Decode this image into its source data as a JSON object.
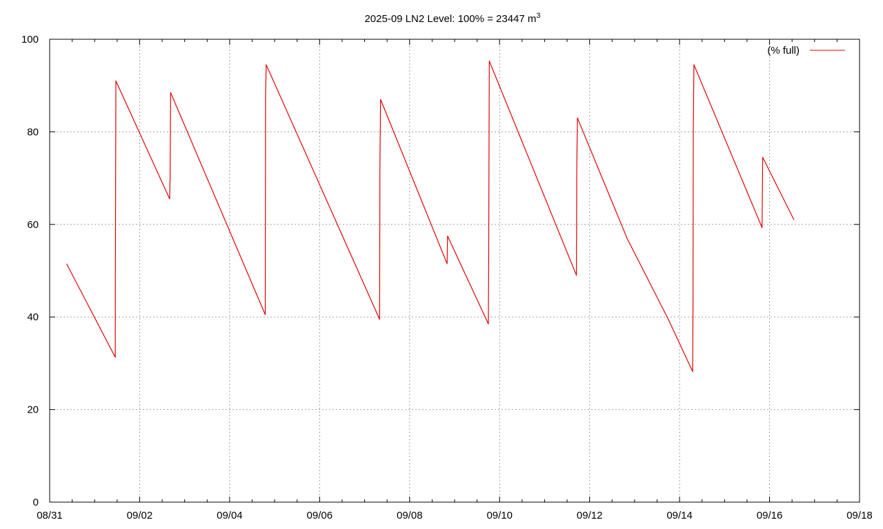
{
  "chart_data": {
    "type": "line",
    "title_main": "2025-09 LN2 Level: 100% = 23447 m",
    "title_sup": "3",
    "xlabel": "",
    "ylabel": "",
    "x_range": [
      "2025-08-31",
      "2025-09-18"
    ],
    "ylim": [
      0,
      100
    ],
    "x_tick_labels": [
      "08/31",
      "09/02",
      "09/04",
      "09/06",
      "09/08",
      "09/10",
      "09/12",
      "09/14",
      "09/16",
      "09/18"
    ],
    "y_tick_labels": [
      "0",
      "20",
      "40",
      "60",
      "80",
      "100"
    ],
    "grid": true,
    "legend_position": "top-right",
    "series": [
      {
        "name": "(% full)",
        "color": "#e00000",
        "points": [
          [
            "2025-08-31T09:00",
            51.5
          ],
          [
            "2025-09-01T11:00",
            31.3
          ],
          [
            "2025-09-01T11:05",
            50.0
          ],
          [
            "2025-09-01T11:20",
            91.0
          ],
          [
            "2025-09-02T16:00",
            65.5
          ],
          [
            "2025-09-02T16:15",
            70.0
          ],
          [
            "2025-09-02T16:30",
            88.5
          ],
          [
            "2025-09-04T19:00",
            40.5
          ],
          [
            "2025-09-04T19:10",
            88.0
          ],
          [
            "2025-09-04T19:30",
            94.5
          ],
          [
            "2025-09-07T08:00",
            39.5
          ],
          [
            "2025-09-07T08:10",
            72.0
          ],
          [
            "2025-09-07T08:30",
            87.0
          ],
          [
            "2025-09-08T20:00",
            51.5
          ],
          [
            "2025-09-08T20:15",
            57.5
          ],
          [
            "2025-09-09T18:00",
            38.5
          ],
          [
            "2025-09-09T18:10",
            52.0
          ],
          [
            "2025-09-09T18:30",
            95.3
          ],
          [
            "2025-09-11T17:00",
            49.0
          ],
          [
            "2025-09-11T17:10",
            72.0
          ],
          [
            "2025-09-11T17:30",
            83.0
          ],
          [
            "2025-09-12T20:00",
            57.0
          ],
          [
            "2025-09-13T18:00",
            39.5
          ],
          [
            "2025-09-14T07:00",
            28.2
          ],
          [
            "2025-09-14T07:10",
            43.0
          ],
          [
            "2025-09-14T07:20",
            80.0
          ],
          [
            "2025-09-14T07:40",
            94.5
          ],
          [
            "2025-09-15T20:00",
            59.3
          ],
          [
            "2025-09-15T20:20",
            74.5
          ],
          [
            "2025-09-16T13:00",
            61.0
          ]
        ]
      }
    ]
  }
}
